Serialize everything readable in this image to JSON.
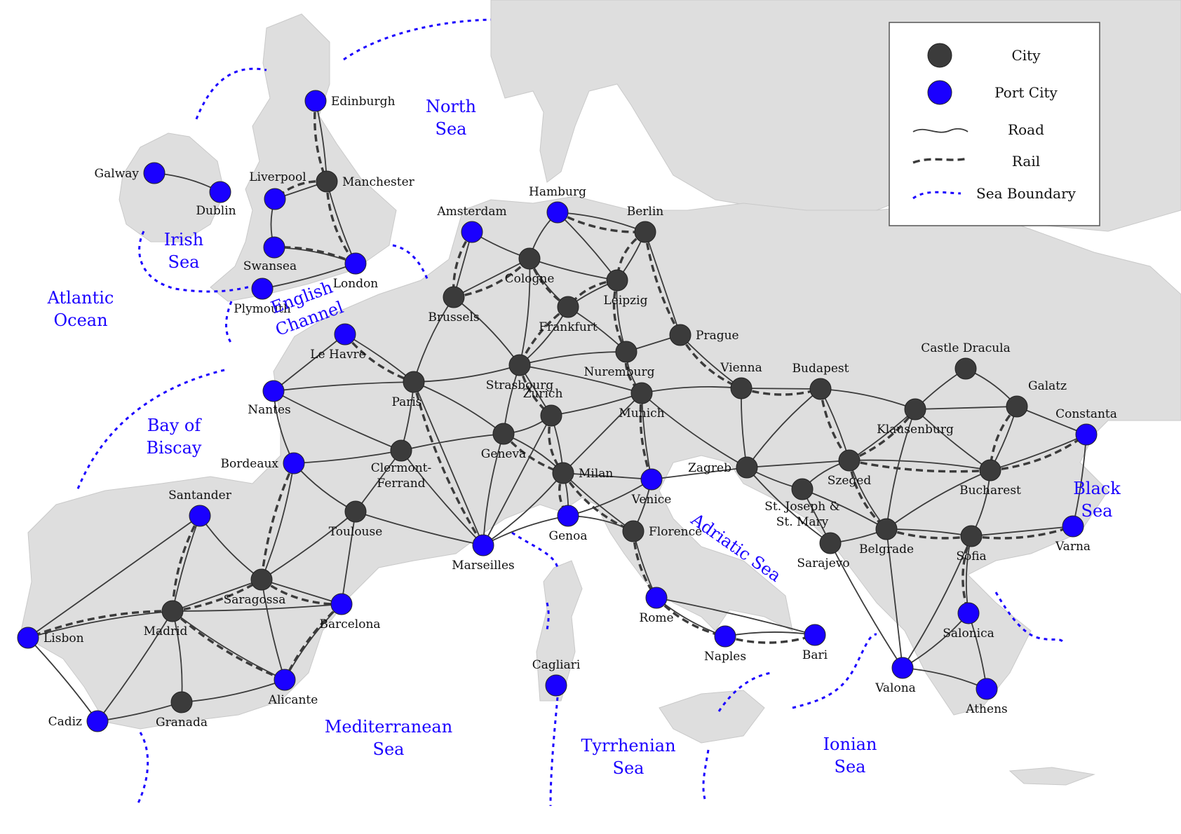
{
  "legend": {
    "items": [
      {
        "label": "City",
        "kind": "city"
      },
      {
        "label": "Port City",
        "kind": "port"
      },
      {
        "label": "Road",
        "kind": "road"
      },
      {
        "label": "Rail",
        "kind": "rail"
      },
      {
        "label": "Sea Boundary",
        "kind": "sea"
      }
    ]
  },
  "colors": {
    "city": "#3b3b3b",
    "port": "#1a00ff",
    "land": "#dedede",
    "sea_text": "#1a00ff"
  },
  "cities": [
    {
      "id": "edinburgh",
      "name": "Edinburgh",
      "type": "port"
    },
    {
      "id": "manchester",
      "name": "Manchester",
      "type": "city"
    },
    {
      "id": "liverpool",
      "name": "Liverpool",
      "type": "port"
    },
    {
      "id": "swansea",
      "name": "Swansea",
      "type": "port"
    },
    {
      "id": "london",
      "name": "London",
      "type": "port"
    },
    {
      "id": "plymouth",
      "name": "Plymouth",
      "type": "port"
    },
    {
      "id": "galway",
      "name": "Galway",
      "type": "port"
    },
    {
      "id": "dublin",
      "name": "Dublin",
      "type": "port"
    },
    {
      "id": "amsterdam",
      "name": "Amsterdam",
      "type": "port"
    },
    {
      "id": "hamburg",
      "name": "Hamburg",
      "type": "port"
    },
    {
      "id": "berlin",
      "name": "Berlin",
      "type": "city"
    },
    {
      "id": "cologne",
      "name": "Cologne",
      "type": "city"
    },
    {
      "id": "leipzig",
      "name": "Leipzig",
      "type": "city"
    },
    {
      "id": "brussels",
      "name": "Brussels",
      "type": "city"
    },
    {
      "id": "frankfurt",
      "name": "Frankfurt",
      "type": "city"
    },
    {
      "id": "prague",
      "name": "Prague",
      "type": "city"
    },
    {
      "id": "lehavre",
      "name": "Le Havre",
      "type": "port"
    },
    {
      "id": "nuremburg",
      "name": "Nuremburg",
      "type": "city"
    },
    {
      "id": "strasbourg",
      "name": "Strasbourg",
      "type": "city"
    },
    {
      "id": "paris",
      "name": "Paris",
      "type": "city"
    },
    {
      "id": "nantes",
      "name": "Nantes",
      "type": "port"
    },
    {
      "id": "vienna",
      "name": "Vienna",
      "type": "city"
    },
    {
      "id": "budapest",
      "name": "Budapest",
      "type": "city"
    },
    {
      "id": "castledracula",
      "name": "Castle Dracula",
      "type": "city"
    },
    {
      "id": "munich",
      "name": "Munich",
      "type": "city"
    },
    {
      "id": "zurich",
      "name": "Zurich",
      "type": "city"
    },
    {
      "id": "galatz",
      "name": "Galatz",
      "type": "city"
    },
    {
      "id": "klausenburg",
      "name": "Klausenburg",
      "type": "city"
    },
    {
      "id": "constanta",
      "name": "Constanta",
      "type": "port"
    },
    {
      "id": "geneva",
      "name": "Geneva",
      "type": "city"
    },
    {
      "id": "clermont",
      "name": "Clermont-\nFerrand",
      "type": "city"
    },
    {
      "id": "bordeaux",
      "name": "Bordeaux",
      "type": "port"
    },
    {
      "id": "zagreb",
      "name": "Zagreb",
      "type": "city"
    },
    {
      "id": "szeged",
      "name": "Szeged",
      "type": "city"
    },
    {
      "id": "milan",
      "name": "Milan",
      "type": "city"
    },
    {
      "id": "venice",
      "name": "Venice",
      "type": "port"
    },
    {
      "id": "bucharest",
      "name": "Bucharest",
      "type": "city"
    },
    {
      "id": "stjoseph",
      "name": "St. Joseph &\nSt. Mary",
      "type": "city"
    },
    {
      "id": "santander",
      "name": "Santander",
      "type": "port"
    },
    {
      "id": "toulouse",
      "name": "Toulouse",
      "type": "city"
    },
    {
      "id": "genoa",
      "name": "Genoa",
      "type": "port"
    },
    {
      "id": "florence",
      "name": "Florence",
      "type": "city"
    },
    {
      "id": "marseilles",
      "name": "Marseilles",
      "type": "port"
    },
    {
      "id": "belgrade",
      "name": "Belgrade",
      "type": "city"
    },
    {
      "id": "sarajevo",
      "name": "Sarajevo",
      "type": "city"
    },
    {
      "id": "sofia",
      "name": "Sofia",
      "type": "city"
    },
    {
      "id": "varna",
      "name": "Varna",
      "type": "port"
    },
    {
      "id": "saragossa",
      "name": "Saragossa",
      "type": "city"
    },
    {
      "id": "rome",
      "name": "Rome",
      "type": "port"
    },
    {
      "id": "barcelona",
      "name": "Barcelona",
      "type": "port"
    },
    {
      "id": "madrid",
      "name": "Madrid",
      "type": "city"
    },
    {
      "id": "lisbon",
      "name": "Lisbon",
      "type": "port"
    },
    {
      "id": "naples",
      "name": "Naples",
      "type": "port"
    },
    {
      "id": "bari",
      "name": "Bari",
      "type": "port"
    },
    {
      "id": "salonica",
      "name": "Salonica",
      "type": "port"
    },
    {
      "id": "cagliari",
      "name": "Cagliari",
      "type": "port"
    },
    {
      "id": "alicante",
      "name": "Alicante",
      "type": "port"
    },
    {
      "id": "valona",
      "name": "Valona",
      "type": "port"
    },
    {
      "id": "granada",
      "name": "Granada",
      "type": "city"
    },
    {
      "id": "cadiz",
      "name": "Cadiz",
      "type": "port"
    },
    {
      "id": "athens",
      "name": "Athens",
      "type": "port"
    }
  ],
  "roads": [
    [
      "galway",
      "dublin"
    ],
    [
      "edinburgh",
      "manchester"
    ],
    [
      "manchester",
      "liverpool"
    ],
    [
      "manchester",
      "london"
    ],
    [
      "liverpool",
      "swansea"
    ],
    [
      "swansea",
      "london"
    ],
    [
      "london",
      "plymouth"
    ],
    [
      "amsterdam",
      "brussels"
    ],
    [
      "amsterdam",
      "cologne"
    ],
    [
      "hamburg",
      "cologne"
    ],
    [
      "hamburg",
      "berlin"
    ],
    [
      "hamburg",
      "leipzig"
    ],
    [
      "cologne",
      "brussels"
    ],
    [
      "cologne",
      "leipzig"
    ],
    [
      "cologne",
      "frankfurt"
    ],
    [
      "cologne",
      "strasbourg"
    ],
    [
      "berlin",
      "leipzig"
    ],
    [
      "berlin",
      "prague"
    ],
    [
      "leipzig",
      "frankfurt"
    ],
    [
      "leipzig",
      "nuremburg"
    ],
    [
      "frankfurt",
      "strasbourg"
    ],
    [
      "frankfurt",
      "nuremburg"
    ],
    [
      "prague",
      "nuremburg"
    ],
    [
      "prague",
      "vienna"
    ],
    [
      "brussels",
      "paris"
    ],
    [
      "brussels",
      "strasbourg"
    ],
    [
      "lehavre",
      "paris"
    ],
    [
      "lehavre",
      "nantes"
    ],
    [
      "paris",
      "nantes"
    ],
    [
      "paris",
      "strasbourg"
    ],
    [
      "paris",
      "geneva"
    ],
    [
      "paris",
      "clermont"
    ],
    [
      "paris",
      "marseilles"
    ],
    [
      "nantes",
      "clermont"
    ],
    [
      "nantes",
      "bordeaux"
    ],
    [
      "strasbourg",
      "nuremburg"
    ],
    [
      "strasbourg",
      "munich"
    ],
    [
      "strasbourg",
      "zurich"
    ],
    [
      "strasbourg",
      "geneva"
    ],
    [
      "nuremburg",
      "munich"
    ],
    [
      "munich",
      "vienna"
    ],
    [
      "munich",
      "zurich"
    ],
    [
      "munich",
      "milan"
    ],
    [
      "munich",
      "venice"
    ],
    [
      "munich",
      "zagreb"
    ],
    [
      "zurich",
      "geneva"
    ],
    [
      "zurich",
      "milan"
    ],
    [
      "zurich",
      "marseilles"
    ],
    [
      "geneva",
      "clermont"
    ],
    [
      "geneva",
      "marseilles"
    ],
    [
      "geneva",
      "milan"
    ],
    [
      "clermont",
      "bordeaux"
    ],
    [
      "clermont",
      "toulouse"
    ],
    [
      "clermont",
      "marseilles"
    ],
    [
      "bordeaux",
      "toulouse"
    ],
    [
      "bordeaux",
      "saragossa"
    ],
    [
      "toulouse",
      "saragossa"
    ],
    [
      "toulouse",
      "barcelona"
    ],
    [
      "toulouse",
      "marseilles"
    ],
    [
      "marseilles",
      "milan"
    ],
    [
      "marseilles",
      "genoa"
    ],
    [
      "milan",
      "genoa"
    ],
    [
      "milan",
      "venice"
    ],
    [
      "milan",
      "florence"
    ],
    [
      "genoa",
      "venice"
    ],
    [
      "genoa",
      "florence"
    ],
    [
      "venice",
      "florence"
    ],
    [
      "venice",
      "zagreb"
    ],
    [
      "florence",
      "rome"
    ],
    [
      "rome",
      "naples"
    ],
    [
      "naples",
      "bari"
    ],
    [
      "rome",
      "bari"
    ],
    [
      "vienna",
      "budapest"
    ],
    [
      "vienna",
      "zagreb"
    ],
    [
      "budapest",
      "zagreb"
    ],
    [
      "budapest",
      "klausenburg"
    ],
    [
      "budapest",
      "szeged"
    ],
    [
      "zagreb",
      "szeged"
    ],
    [
      "zagreb",
      "stjoseph"
    ],
    [
      "zagreb",
      "sarajevo"
    ],
    [
      "stjoseph",
      "szeged"
    ],
    [
      "stjoseph",
      "belgrade"
    ],
    [
      "stjoseph",
      "sarajevo"
    ],
    [
      "szeged",
      "klausenburg"
    ],
    [
      "szeged",
      "belgrade"
    ],
    [
      "szeged",
      "bucharest"
    ],
    [
      "klausenburg",
      "castledracula"
    ],
    [
      "klausenburg",
      "galatz"
    ],
    [
      "klausenburg",
      "bucharest"
    ],
    [
      "klausenburg",
      "belgrade"
    ],
    [
      "castledracula",
      "galatz"
    ],
    [
      "galatz",
      "bucharest"
    ],
    [
      "galatz",
      "constanta"
    ],
    [
      "bucharest",
      "constanta"
    ],
    [
      "bucharest",
      "belgrade"
    ],
    [
      "bucharest",
      "sofia"
    ],
    [
      "constanta",
      "varna"
    ],
    [
      "sofia",
      "varna"
    ],
    [
      "sofia",
      "belgrade"
    ],
    [
      "sofia",
      "salonica"
    ],
    [
      "sofia",
      "valona"
    ],
    [
      "belgrade",
      "sarajevo"
    ],
    [
      "belgrade",
      "valona"
    ],
    [
      "sarajevo",
      "valona"
    ],
    [
      "valona",
      "salonica"
    ],
    [
      "valona",
      "athens"
    ],
    [
      "salonica",
      "athens"
    ],
    [
      "santander",
      "lisbon"
    ],
    [
      "santander",
      "madrid"
    ],
    [
      "santander",
      "saragossa"
    ],
    [
      "lisbon",
      "madrid"
    ],
    [
      "lisbon",
      "cadiz"
    ],
    [
      "madrid",
      "saragossa"
    ],
    [
      "madrid",
      "barcelona"
    ],
    [
      "madrid",
      "alicante"
    ],
    [
      "madrid",
      "granada"
    ],
    [
      "madrid",
      "cadiz"
    ],
    [
      "saragossa",
      "barcelona"
    ],
    [
      "saragossa",
      "alicante"
    ],
    [
      "barcelona",
      "alicante"
    ],
    [
      "alicante",
      "granada"
    ],
    [
      "granada",
      "cadiz"
    ]
  ],
  "rails": [
    [
      "edinburgh",
      "manchester"
    ],
    [
      "manchester",
      "liverpool"
    ],
    [
      "manchester",
      "london"
    ],
    [
      "london",
      "swansea"
    ],
    [
      "amsterdam",
      "brussels"
    ],
    [
      "brussels",
      "cologne"
    ],
    [
      "cologne",
      "frankfurt"
    ],
    [
      "hamburg",
      "berlin"
    ],
    [
      "berlin",
      "leipzig"
    ],
    [
      "berlin",
      "prague"
    ],
    [
      "leipzig",
      "frankfurt"
    ],
    [
      "leipzig",
      "nuremburg"
    ],
    [
      "frankfurt",
      "strasbourg"
    ],
    [
      "lehavre",
      "paris"
    ],
    [
      "paris",
      "marseilles"
    ],
    [
      "strasbourg",
      "zurich"
    ],
    [
      "nuremburg",
      "munich"
    ],
    [
      "prague",
      "vienna"
    ],
    [
      "munich",
      "venice"
    ],
    [
      "vienna",
      "budapest"
    ],
    [
      "zurich",
      "milan"
    ],
    [
      "geneva",
      "milan"
    ],
    [
      "milan",
      "genoa"
    ],
    [
      "milan",
      "florence"
    ],
    [
      "florence",
      "rome"
    ],
    [
      "rome",
      "naples"
    ],
    [
      "naples",
      "bari"
    ],
    [
      "budapest",
      "szeged"
    ],
    [
      "szeged",
      "klausenburg"
    ],
    [
      "szeged",
      "belgrade"
    ],
    [
      "szeged",
      "bucharest"
    ],
    [
      "galatz",
      "bucharest"
    ],
    [
      "bucharest",
      "constanta"
    ],
    [
      "belgrade",
      "sofia"
    ],
    [
      "sofia",
      "varna"
    ],
    [
      "sofia",
      "salonica"
    ],
    [
      "bordeaux",
      "saragossa"
    ],
    [
      "santander",
      "madrid"
    ],
    [
      "madrid",
      "lisbon"
    ],
    [
      "madrid",
      "saragossa"
    ],
    [
      "madrid",
      "alicante"
    ],
    [
      "saragossa",
      "barcelona"
    ],
    [
      "barcelona",
      "alicante"
    ]
  ],
  "seas": [
    {
      "id": "north_sea",
      "label": [
        "North",
        "Sea"
      ]
    },
    {
      "id": "irish_sea",
      "label": [
        "Irish",
        "Sea"
      ]
    },
    {
      "id": "atlantic",
      "label": [
        "Atlantic",
        "Ocean"
      ]
    },
    {
      "id": "english_channel",
      "label": [
        "English",
        "Channel"
      ]
    },
    {
      "id": "biscay",
      "label": [
        "Bay of",
        "Biscay"
      ]
    },
    {
      "id": "mediterranean",
      "label": [
        "Mediterranean",
        "Sea"
      ]
    },
    {
      "id": "tyrrhenian",
      "label": [
        "Tyrrhenian",
        "Sea"
      ]
    },
    {
      "id": "ionian",
      "label": [
        "Ionian",
        "Sea"
      ]
    },
    {
      "id": "adriatic",
      "label": [
        "Adriatic Sea"
      ]
    },
    {
      "id": "black_sea",
      "label": [
        "Black",
        "Sea"
      ]
    }
  ]
}
